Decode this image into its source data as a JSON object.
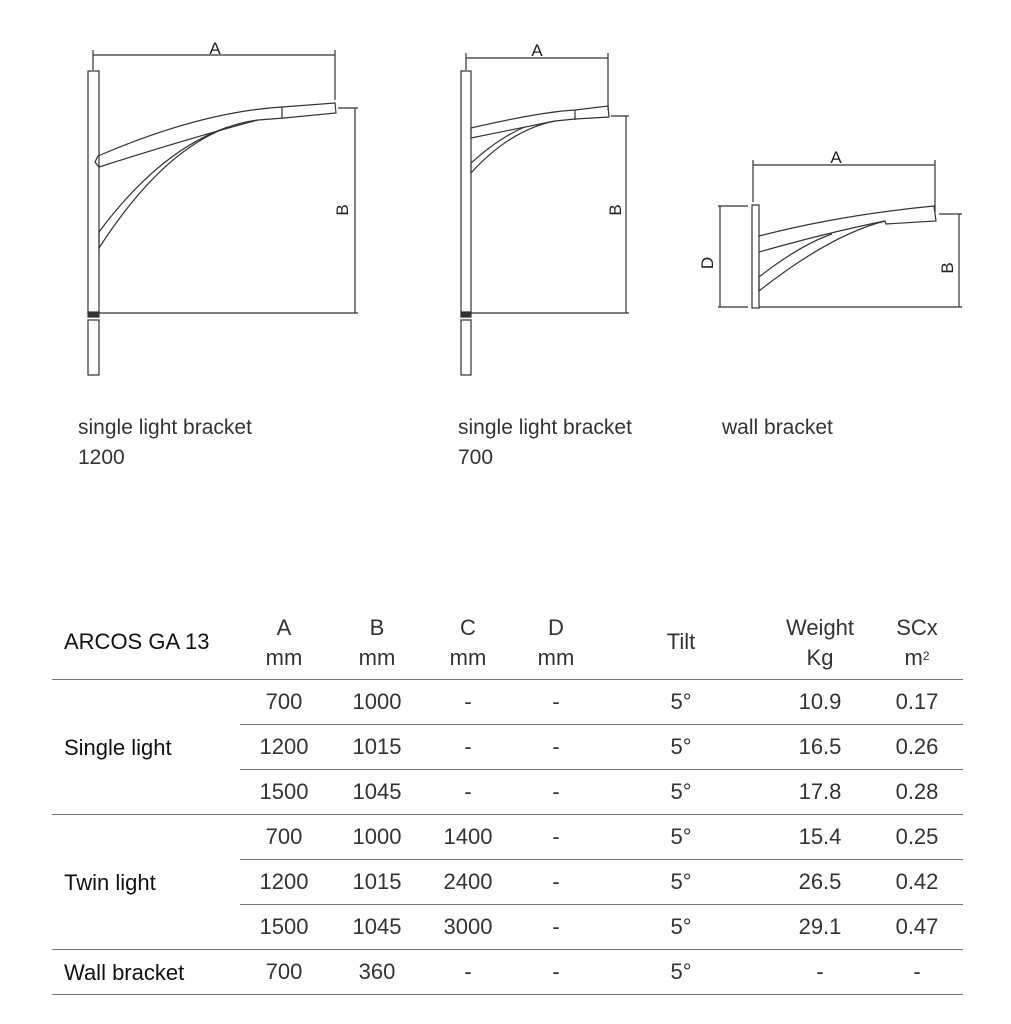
{
  "drawings": [
    {
      "caption_line1": "single light bracket",
      "caption_line2": "1200",
      "dim_labels": [
        "A",
        "B"
      ]
    },
    {
      "caption_line1": "single light bracket",
      "caption_line2": "700",
      "dim_labels": [
        "A",
        "B"
      ]
    },
    {
      "caption_line1": "wall bracket",
      "caption_line2": "",
      "dim_labels": [
        "A",
        "D",
        "B"
      ]
    }
  ],
  "table": {
    "title": "ARCOS GA 13",
    "headers": [
      {
        "top": "A",
        "bottom": "mm"
      },
      {
        "top": "B",
        "bottom": "mm"
      },
      {
        "top": "C",
        "bottom": "mm"
      },
      {
        "top": "D",
        "bottom": "mm"
      },
      {
        "top": "Tilt",
        "bottom": ""
      },
      {
        "top": "Weight",
        "bottom": "Kg"
      },
      {
        "top": "SCx",
        "bottom": "m",
        "bottom_sup": "2"
      }
    ],
    "groups": [
      {
        "label": "Single light",
        "rows": [
          [
            "700",
            "1000",
            "-",
            "-",
            "5°",
            "10.9",
            "0.17"
          ],
          [
            "1200",
            "1015",
            "-",
            "-",
            "5°",
            "16.5",
            "0.26"
          ],
          [
            "1500",
            "1045",
            "-",
            "-",
            "5°",
            "17.8",
            "0.28"
          ]
        ]
      },
      {
        "label": "Twin light",
        "rows": [
          [
            "700",
            "1000",
            "1400",
            "-",
            "5°",
            "15.4",
            "0.25"
          ],
          [
            "1200",
            "1015",
            "2400",
            "-",
            "5°",
            "26.5",
            "0.42"
          ],
          [
            "1500",
            "1045",
            "3000",
            "-",
            "5°",
            "29.1",
            "0.47"
          ]
        ]
      },
      {
        "label": "Wall bracket",
        "rows": [
          [
            "700",
            "360",
            "-",
            "-",
            "5°",
            "-",
            "-"
          ]
        ]
      }
    ]
  }
}
